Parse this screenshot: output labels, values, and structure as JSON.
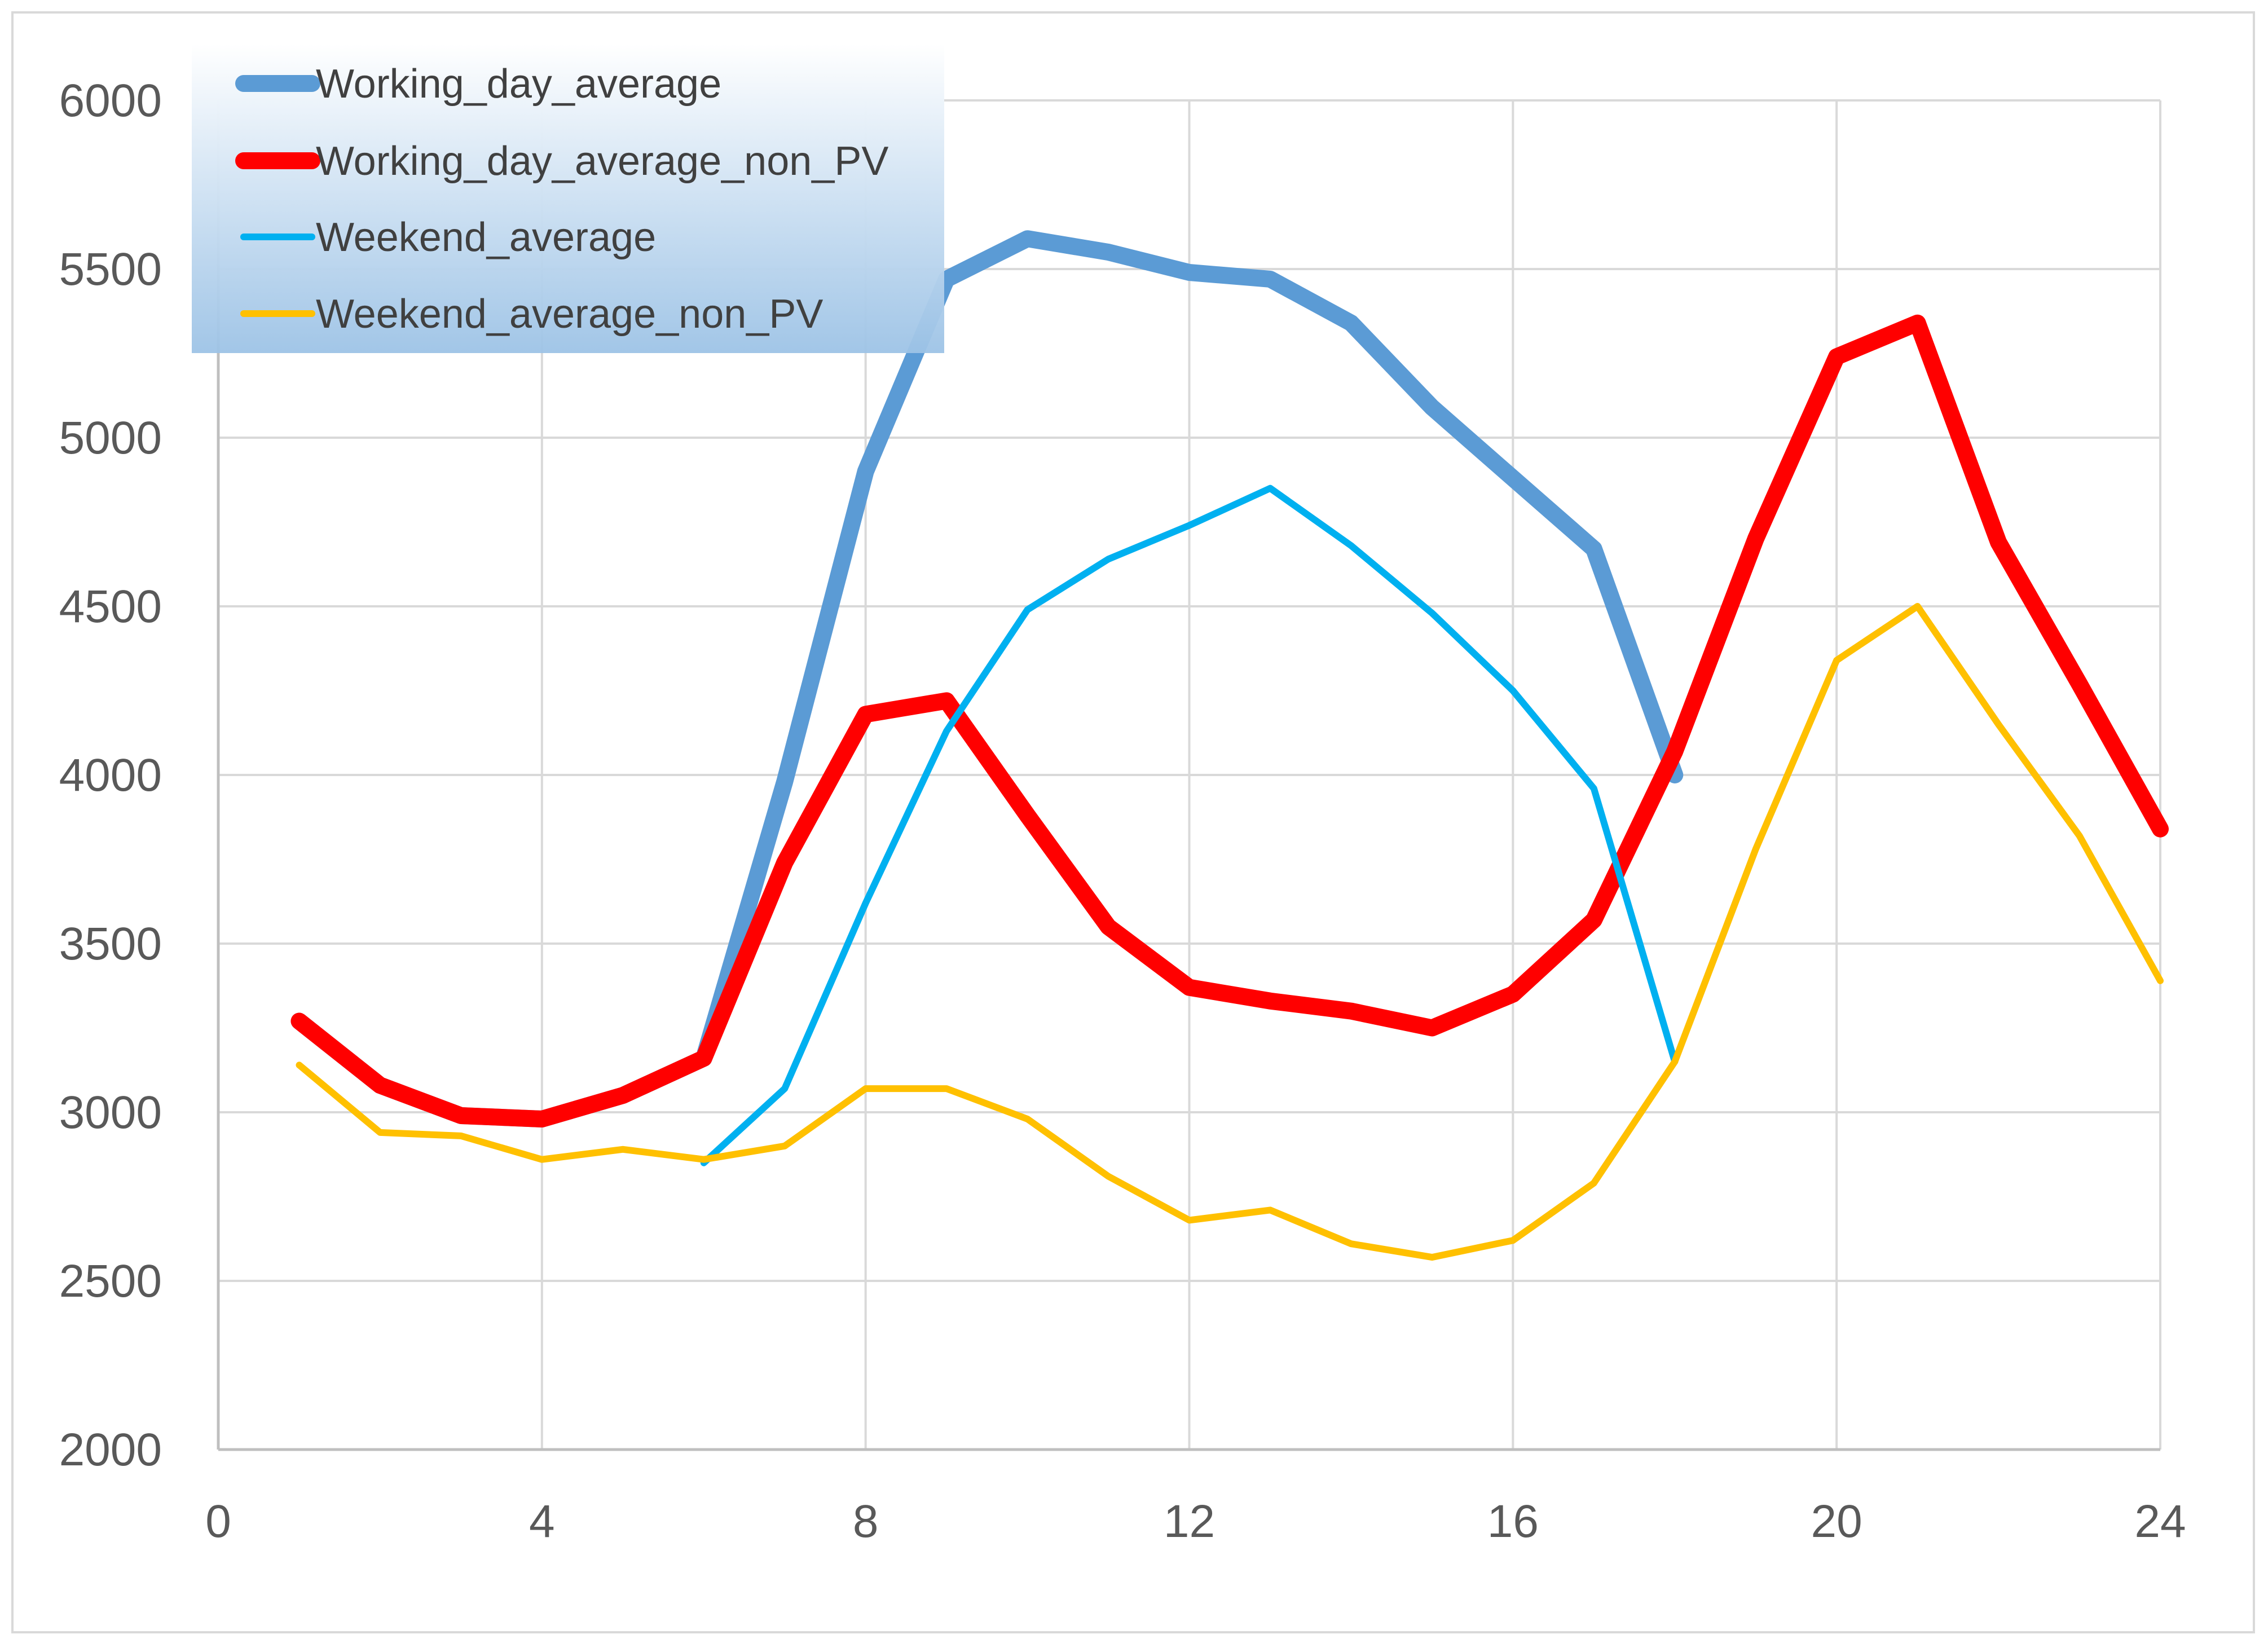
{
  "chart_data": {
    "type": "line",
    "x": [
      1,
      2,
      3,
      4,
      5,
      6,
      7,
      8,
      9,
      10,
      11,
      12,
      13,
      14,
      15,
      16,
      17,
      18,
      19,
      20,
      21,
      22,
      23,
      24
    ],
    "xlim": [
      0,
      24
    ],
    "ylim": [
      2000,
      6000
    ],
    "x_ticks": [
      0,
      4,
      8,
      12,
      16,
      20,
      24
    ],
    "y_ticks": [
      2000,
      2500,
      3000,
      3500,
      4000,
      4500,
      5000,
      5500,
      6000
    ],
    "grid": true,
    "legend_position": "top-left",
    "series": [
      {
        "name": "Working_day_average",
        "color": "#5b9bd5",
        "values": [
          3270,
          3080,
          2990,
          2980,
          3050,
          3160,
          3980,
          4900,
          5470,
          5590,
          5550,
          5490,
          5470,
          5340,
          5090,
          4880,
          4670,
          4000,
          null,
          null,
          null,
          null,
          null,
          null
        ]
      },
      {
        "name": "Working_day_average_non_PV",
        "color": "#ff0000",
        "values": [
          3270,
          3080,
          2990,
          2980,
          3050,
          3160,
          3740,
          4180,
          4220,
          3880,
          3550,
          3370,
          3330,
          3300,
          3250,
          3350,
          3570,
          4070,
          4700,
          5240,
          5340,
          4690,
          4270,
          3840
        ]
      },
      {
        "name": "Weekend_average",
        "color": "#00b0f0",
        "values": [
          null,
          null,
          null,
          null,
          null,
          2850,
          3070,
          3620,
          4130,
          4490,
          4640,
          4740,
          4850,
          4680,
          4480,
          4250,
          3960,
          3150,
          null,
          null,
          null,
          null,
          null,
          null
        ]
      },
      {
        "name": "Weekend_average_non_PV",
        "color": "#ffc000",
        "values": [
          3140,
          2940,
          2930,
          2860,
          2890,
          2860,
          2900,
          3070,
          3070,
          2980,
          2810,
          2680,
          2710,
          2610,
          2570,
          2620,
          2790,
          3150,
          3780,
          4340,
          4500,
          4150,
          3820,
          3390
        ]
      }
    ]
  }
}
